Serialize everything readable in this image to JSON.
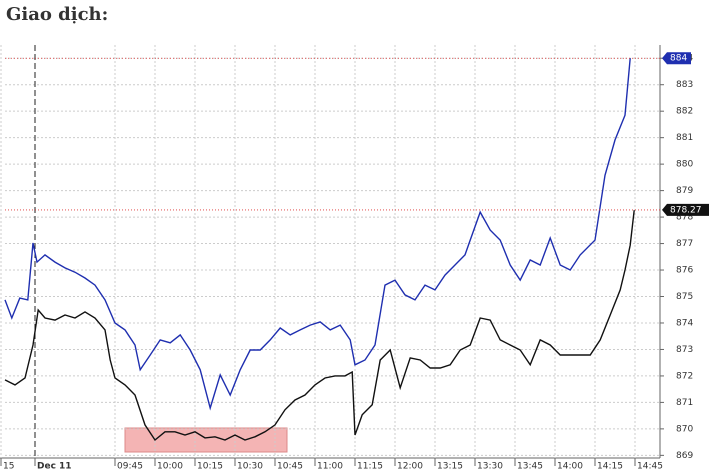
{
  "title": "Giao dịch:",
  "chart_data": {
    "type": "line",
    "xlim": [
      -0.75,
      15.625
    ],
    "ylim": [
      868.9,
      884.5
    ],
    "xticks": [
      {
        "value": -0.85,
        "label": "15"
      },
      {
        "value": 0,
        "label": "Dec 11"
      },
      {
        "value": 2,
        "label": "09:45"
      },
      {
        "value": 3,
        "label": "10:00"
      },
      {
        "value": 4,
        "label": "10:15"
      },
      {
        "value": 5,
        "label": "10:30"
      },
      {
        "value": 6,
        "label": "10:45"
      },
      {
        "value": 7,
        "label": "11:00"
      },
      {
        "value": 8,
        "label": "11:15"
      },
      {
        "value": 9,
        "label": "12:00"
      },
      {
        "value": 10,
        "label": "13:15"
      },
      {
        "value": 11,
        "label": "13:30"
      },
      {
        "value": 12,
        "label": "13:45"
      },
      {
        "value": 13,
        "label": "14:00"
      },
      {
        "value": 14,
        "label": "14:15"
      },
      {
        "value": 15,
        "label": "14:45"
      }
    ],
    "yticks": [
      869,
      870,
      871,
      872,
      873,
      874,
      875,
      876,
      877,
      878,
      879,
      880,
      881,
      882,
      883,
      884
    ],
    "grid": true,
    "series": [
      {
        "color": "#1f2fb0",
        "x": [
          -0.75,
          -0.58,
          -0.38,
          -0.18,
          -0.05,
          0.05,
          0.25,
          0.5,
          0.75,
          1,
          1.25,
          1.5,
          1.75,
          2,
          2.25,
          2.5,
          2.63,
          2.88,
          3.13,
          3.38,
          3.63,
          3.88,
          4.13,
          4.38,
          4.63,
          4.88,
          5.13,
          5.38,
          5.63,
          5.88,
          6.13,
          6.38,
          6.63,
          6.88,
          7.13,
          7.38,
          7.63,
          7.88,
          8,
          8.25,
          8.5,
          8.75,
          9,
          9.25,
          9.5,
          9.75,
          10,
          10.25,
          10.5,
          10.75,
          10.88,
          11.13,
          11.38,
          11.63,
          11.88,
          12.13,
          12.38,
          12.63,
          12.88,
          13.13,
          13.38,
          13.63,
          14,
          14.25,
          14.5,
          14.75,
          14.88
        ],
        "values": [
          874.87,
          874.19,
          874.94,
          874.87,
          877.02,
          876.3,
          876.57,
          876.3,
          876.08,
          875.92,
          875.7,
          875.43,
          874.87,
          874.0,
          873.74,
          873.17,
          872.23,
          872.79,
          873.36,
          873.25,
          873.55,
          872.98,
          872.23,
          870.79,
          872.04,
          871.28,
          872.23,
          872.98,
          872.98,
          873.36,
          873.81,
          873.55,
          873.74,
          873.92,
          874.04,
          873.74,
          873.92,
          873.36,
          872.42,
          872.6,
          873.17,
          875.43,
          875.62,
          875.06,
          874.87,
          875.43,
          875.25,
          875.81,
          876.19,
          876.57,
          877.13,
          878.19,
          877.51,
          877.13,
          876.19,
          875.62,
          876.38,
          876.19,
          877.21,
          876.19,
          876.0,
          876.57,
          877.13,
          879.58,
          880.91,
          881.85,
          884
        ]
      },
      {
        "color": "#111111",
        "x": [
          -0.75,
          -0.5,
          -0.25,
          -0.05,
          0.08,
          0.25,
          0.5,
          0.75,
          1,
          1.25,
          1.5,
          1.75,
          1.88,
          2,
          2.25,
          2.5,
          2.75,
          3,
          3.25,
          3.5,
          3.75,
          4,
          4.25,
          4.5,
          4.75,
          5,
          5.25,
          5.5,
          5.75,
          6,
          6.25,
          6.5,
          6.75,
          7,
          7.25,
          7.5,
          7.75,
          7.93,
          8,
          8.18,
          8.43,
          8.63,
          8.88,
          9.13,
          9.38,
          9.63,
          9.88,
          10.13,
          10.38,
          10.63,
          10.88,
          11.13,
          11.38,
          11.63,
          11.88,
          12.13,
          12.38,
          12.63,
          12.88,
          13.13,
          13.38,
          13.63,
          13.88,
          14.13,
          14.38,
          14.63,
          14.75,
          14.88,
          14.98
        ],
        "values": [
          871.85,
          871.66,
          871.92,
          873.17,
          874.49,
          874.19,
          874.11,
          874.3,
          874.19,
          874.42,
          874.19,
          873.74,
          872.6,
          871.92,
          871.66,
          871.28,
          870.15,
          869.58,
          869.89,
          869.89,
          869.77,
          869.89,
          869.66,
          869.7,
          869.58,
          869.77,
          869.58,
          869.7,
          869.89,
          870.15,
          870.72,
          871.09,
          871.28,
          871.66,
          871.92,
          872.0,
          872.0,
          872.15,
          869.77,
          870.53,
          870.91,
          872.6,
          872.98,
          871.55,
          872.68,
          872.6,
          872.3,
          872.3,
          872.42,
          872.98,
          873.17,
          874.19,
          874.11,
          873.36,
          873.17,
          872.98,
          872.42,
          873.36,
          873.17,
          872.79,
          872.79,
          872.79,
          872.79,
          873.36,
          874.3,
          875.25,
          876.0,
          876.94,
          878.26
        ]
      }
    ],
    "price_tags": [
      {
        "value": 884,
        "label": "884",
        "color": "#1f2fb0"
      },
      {
        "value": 878.27,
        "label": "878.27",
        "color": "#111111"
      }
    ]
  }
}
